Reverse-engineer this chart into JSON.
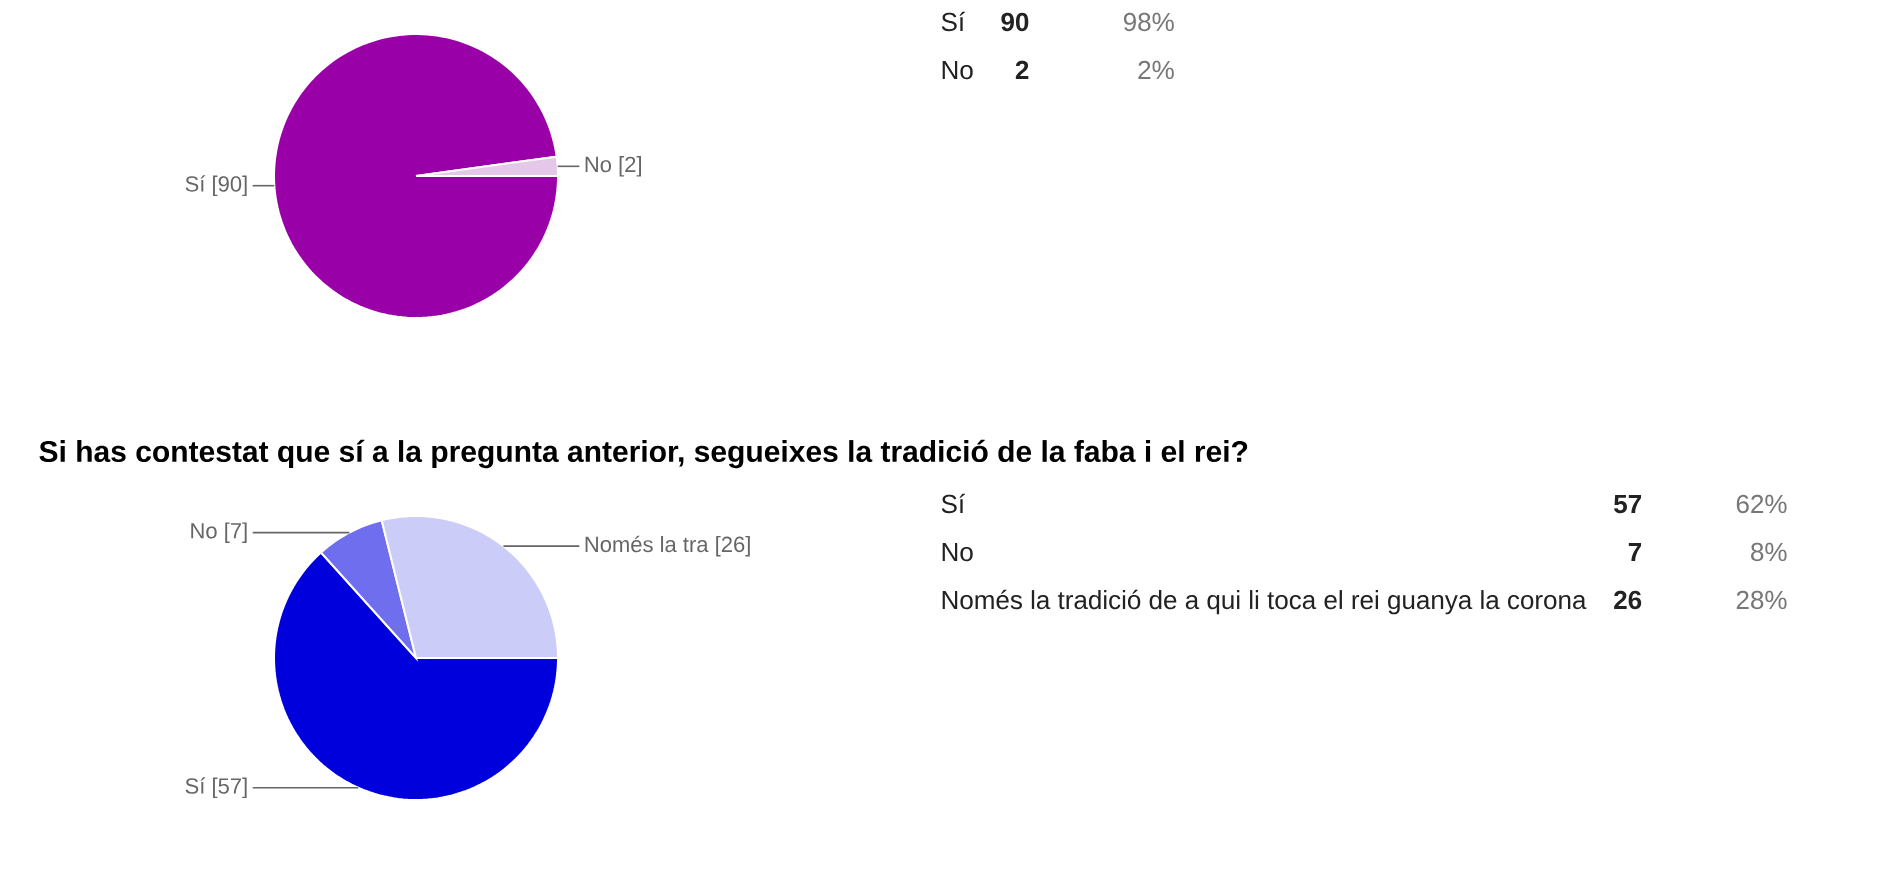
{
  "chart_data": [
    {
      "type": "pie",
      "categories": [
        "Sí",
        "No"
      ],
      "values": [
        90,
        2
      ],
      "colors": [
        "#9900a8",
        "#e3c8e8"
      ],
      "value_labels": [
        "[90]",
        "[2]"
      ],
      "annotations": [
        "Sí",
        "No",
        "90",
        "2",
        "98%",
        "2%"
      ]
    },
    {
      "type": "pie",
      "title": "Si has contestat que sí a la pregunta anterior, segueixes la tradició de la faba i el rei?",
      "categories": [
        "Sí",
        "No",
        "Només la tra"
      ],
      "values": [
        57,
        7,
        26
      ],
      "colors": [
        "#0000dd",
        "#6e6eef",
        "#ccccf8"
      ],
      "value_labels": [
        "[57]",
        "[7]",
        "[26]"
      ],
      "annotations": [
        "Sí",
        "No",
        "Només la tradició de a qui li toca el rei guanya la corona",
        "57",
        "7",
        "26",
        "62%",
        "8%",
        "28%"
      ]
    }
  ]
}
